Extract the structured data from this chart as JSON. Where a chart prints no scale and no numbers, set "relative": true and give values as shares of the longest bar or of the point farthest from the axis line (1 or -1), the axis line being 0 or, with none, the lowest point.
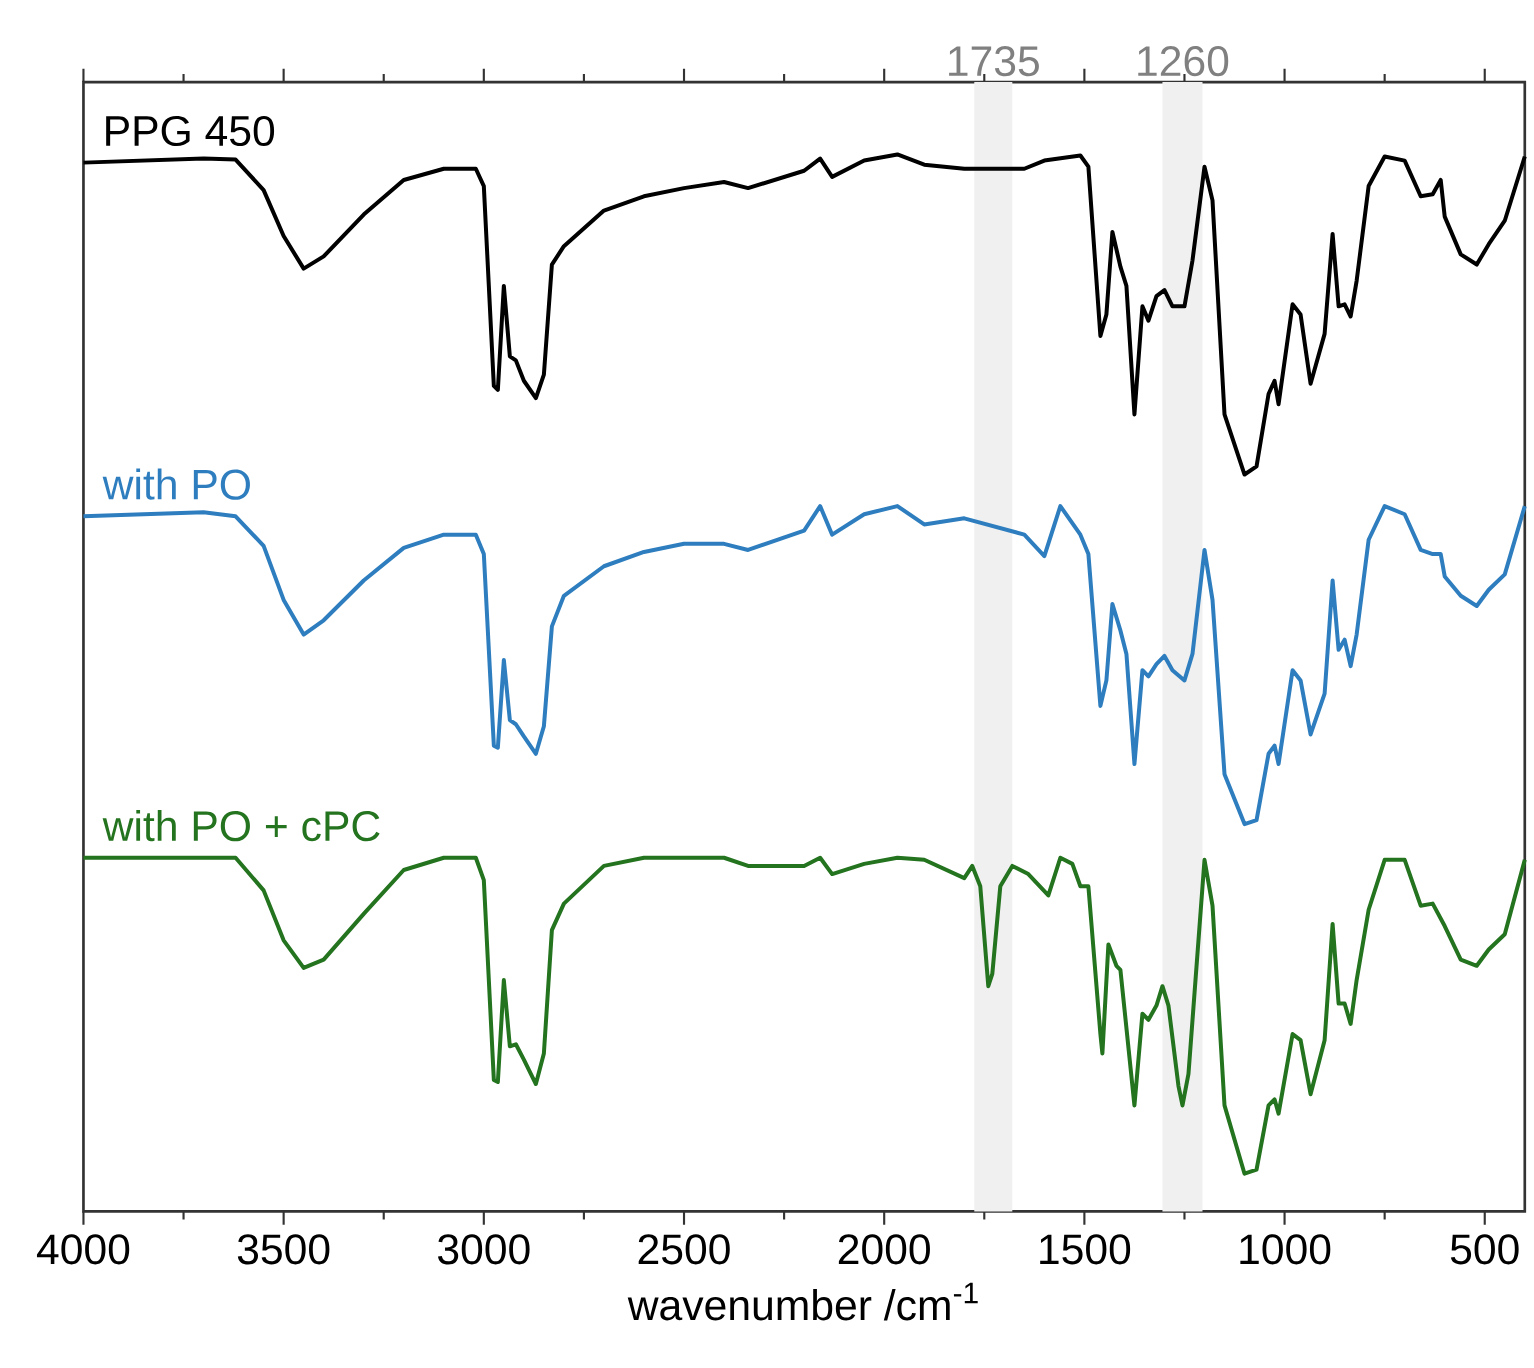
{
  "chart_data": {
    "type": "line",
    "relative": true,
    "xlabel": "wavenumber /cm$^{-1}$",
    "xlim": [
      4000,
      400
    ],
    "xticks": [
      4000,
      3500,
      3000,
      2500,
      2000,
      1500,
      1000,
      500
    ],
    "tick_labels": "x",
    "bands": [
      {
        "axis": "x",
        "from": 1775,
        "to": 1680,
        "label": "1735",
        "color": "#f0f0f0"
      },
      {
        "axis": "x",
        "from": 1305,
        "to": 1205,
        "label": "1260",
        "color": "#f0f0f0"
      }
    ],
    "series": [
      {
        "name": "PPG 450",
        "color": "#000000",
        "x": [
          4000,
          3700,
          3620,
          3550,
          3500,
          3450,
          3400,
          3300,
          3200,
          3100,
          3020,
          3000,
          2975,
          2965,
          2950,
          2935,
          2920,
          2900,
          2870,
          2850,
          2830,
          2800,
          2700,
          2600,
          2500,
          2400,
          2340,
          2200,
          2160,
          2130,
          2050,
          1967,
          1900,
          1800,
          1650,
          1600,
          1510,
          1490,
          1460,
          1445,
          1430,
          1410,
          1395,
          1375,
          1355,
          1340,
          1320,
          1300,
          1280,
          1250,
          1230,
          1200,
          1180,
          1150,
          1100,
          1070,
          1040,
          1025,
          1015,
          980,
          960,
          935,
          900,
          880,
          865,
          850,
          835,
          820,
          790,
          750,
          700,
          660,
          630,
          610,
          600,
          560,
          520,
          490,
          450,
          400
        ],
        "values": [
          0.992,
          0.996,
          0.995,
          0.965,
          0.92,
          0.888,
          0.9,
          0.941,
          0.975,
          0.986,
          0.986,
          0.969,
          0.773,
          0.769,
          0.871,
          0.802,
          0.798,
          0.778,
          0.761,
          0.784,
          0.892,
          0.91,
          0.945,
          0.959,
          0.967,
          0.973,
          0.967,
          0.984,
          0.996,
          0.978,
          0.994,
          1.0,
          0.99,
          0.986,
          0.986,
          0.994,
          0.999,
          0.988,
          0.822,
          0.843,
          0.924,
          0.89,
          0.871,
          0.745,
          0.851,
          0.837,
          0.861,
          0.867,
          0.851,
          0.851,
          0.896,
          0.988,
          0.955,
          0.745,
          0.686,
          0.694,
          0.765,
          0.778,
          0.755,
          0.853,
          0.843,
          0.775,
          0.824,
          0.922,
          0.851,
          0.853,
          0.841,
          0.876,
          0.969,
          0.998,
          0.994,
          0.959,
          0.961,
          0.975,
          0.939,
          0.902,
          0.892,
          0.912,
          0.935,
          0.998
        ]
      },
      {
        "name": "with PO",
        "color": "#2e7ebf",
        "x": [
          4000,
          3700,
          3620,
          3550,
          3500,
          3450,
          3400,
          3300,
          3200,
          3100,
          3020,
          3000,
          2975,
          2965,
          2950,
          2935,
          2920,
          2900,
          2870,
          2850,
          2830,
          2800,
          2700,
          2600,
          2500,
          2400,
          2340,
          2200,
          2160,
          2130,
          2050,
          1967,
          1900,
          1800,
          1650,
          1600,
          1560,
          1510,
          1490,
          1460,
          1445,
          1430,
          1410,
          1395,
          1375,
          1355,
          1340,
          1320,
          1300,
          1280,
          1250,
          1230,
          1200,
          1180,
          1150,
          1100,
          1070,
          1040,
          1025,
          1015,
          980,
          960,
          935,
          900,
          880,
          865,
          850,
          835,
          820,
          790,
          750,
          700,
          660,
          630,
          610,
          600,
          560,
          520,
          490,
          450,
          400
        ],
        "values": [
          0.645,
          0.649,
          0.645,
          0.616,
          0.563,
          0.529,
          0.543,
          0.582,
          0.614,
          0.627,
          0.627,
          0.608,
          0.42,
          0.418,
          0.504,
          0.445,
          0.441,
          0.429,
          0.412,
          0.439,
          0.537,
          0.567,
          0.596,
          0.61,
          0.618,
          0.618,
          0.612,
          0.631,
          0.655,
          0.627,
          0.647,
          0.655,
          0.637,
          0.643,
          0.627,
          0.606,
          0.655,
          0.627,
          0.608,
          0.459,
          0.484,
          0.559,
          0.533,
          0.51,
          0.402,
          0.494,
          0.488,
          0.5,
          0.508,
          0.494,
          0.484,
          0.51,
          0.612,
          0.563,
          0.392,
          0.343,
          0.347,
          0.412,
          0.42,
          0.402,
          0.494,
          0.484,
          0.431,
          0.471,
          0.582,
          0.514,
          0.524,
          0.498,
          0.529,
          0.622,
          0.655,
          0.647,
          0.612,
          0.608,
          0.608,
          0.586,
          0.567,
          0.557,
          0.573,
          0.588,
          0.655
        ]
      },
      {
        "name": "with PO + cPC",
        "color": "#24731f",
        "x": [
          4000,
          3700,
          3620,
          3550,
          3500,
          3450,
          3400,
          3300,
          3200,
          3100,
          3020,
          3000,
          2975,
          2965,
          2950,
          2935,
          2920,
          2900,
          2870,
          2850,
          2830,
          2800,
          2700,
          2600,
          2500,
          2400,
          2340,
          2200,
          2160,
          2130,
          2050,
          1967,
          1900,
          1800,
          1780,
          1760,
          1740,
          1730,
          1710,
          1680,
          1640,
          1590,
          1560,
          1530,
          1510,
          1490,
          1460,
          1455,
          1440,
          1420,
          1410,
          1375,
          1355,
          1340,
          1320,
          1305,
          1290,
          1265,
          1255,
          1240,
          1200,
          1180,
          1150,
          1100,
          1070,
          1040,
          1025,
          1015,
          980,
          960,
          935,
          900,
          880,
          865,
          850,
          835,
          820,
          790,
          750,
          700,
          660,
          630,
          600,
          560,
          520,
          490,
          450,
          400
        ],
        "values": [
          0.31,
          0.31,
          0.31,
          0.278,
          0.229,
          0.202,
          0.21,
          0.255,
          0.298,
          0.31,
          0.31,
          0.288,
          0.092,
          0.09,
          0.19,
          0.125,
          0.127,
          0.112,
          0.088,
          0.118,
          0.239,
          0.265,
          0.302,
          0.31,
          0.31,
          0.31,
          0.302,
          0.302,
          0.31,
          0.294,
          0.304,
          0.31,
          0.308,
          0.29,
          0.302,
          0.282,
          0.184,
          0.196,
          0.282,
          0.302,
          0.294,
          0.273,
          0.31,
          0.304,
          0.282,
          0.282,
          0.137,
          0.118,
          0.225,
          0.204,
          0.2,
          0.067,
          0.157,
          0.151,
          0.165,
          0.184,
          0.165,
          0.086,
          0.067,
          0.098,
          0.308,
          0.263,
          0.067,
          0.0,
          0.004,
          0.067,
          0.073,
          0.059,
          0.137,
          0.131,
          0.078,
          0.131,
          0.245,
          0.167,
          0.167,
          0.147,
          0.19,
          0.259,
          0.308,
          0.308,
          0.263,
          0.265,
          0.243,
          0.21,
          0.204,
          0.22,
          0.235,
          0.308
        ]
      }
    ]
  }
}
